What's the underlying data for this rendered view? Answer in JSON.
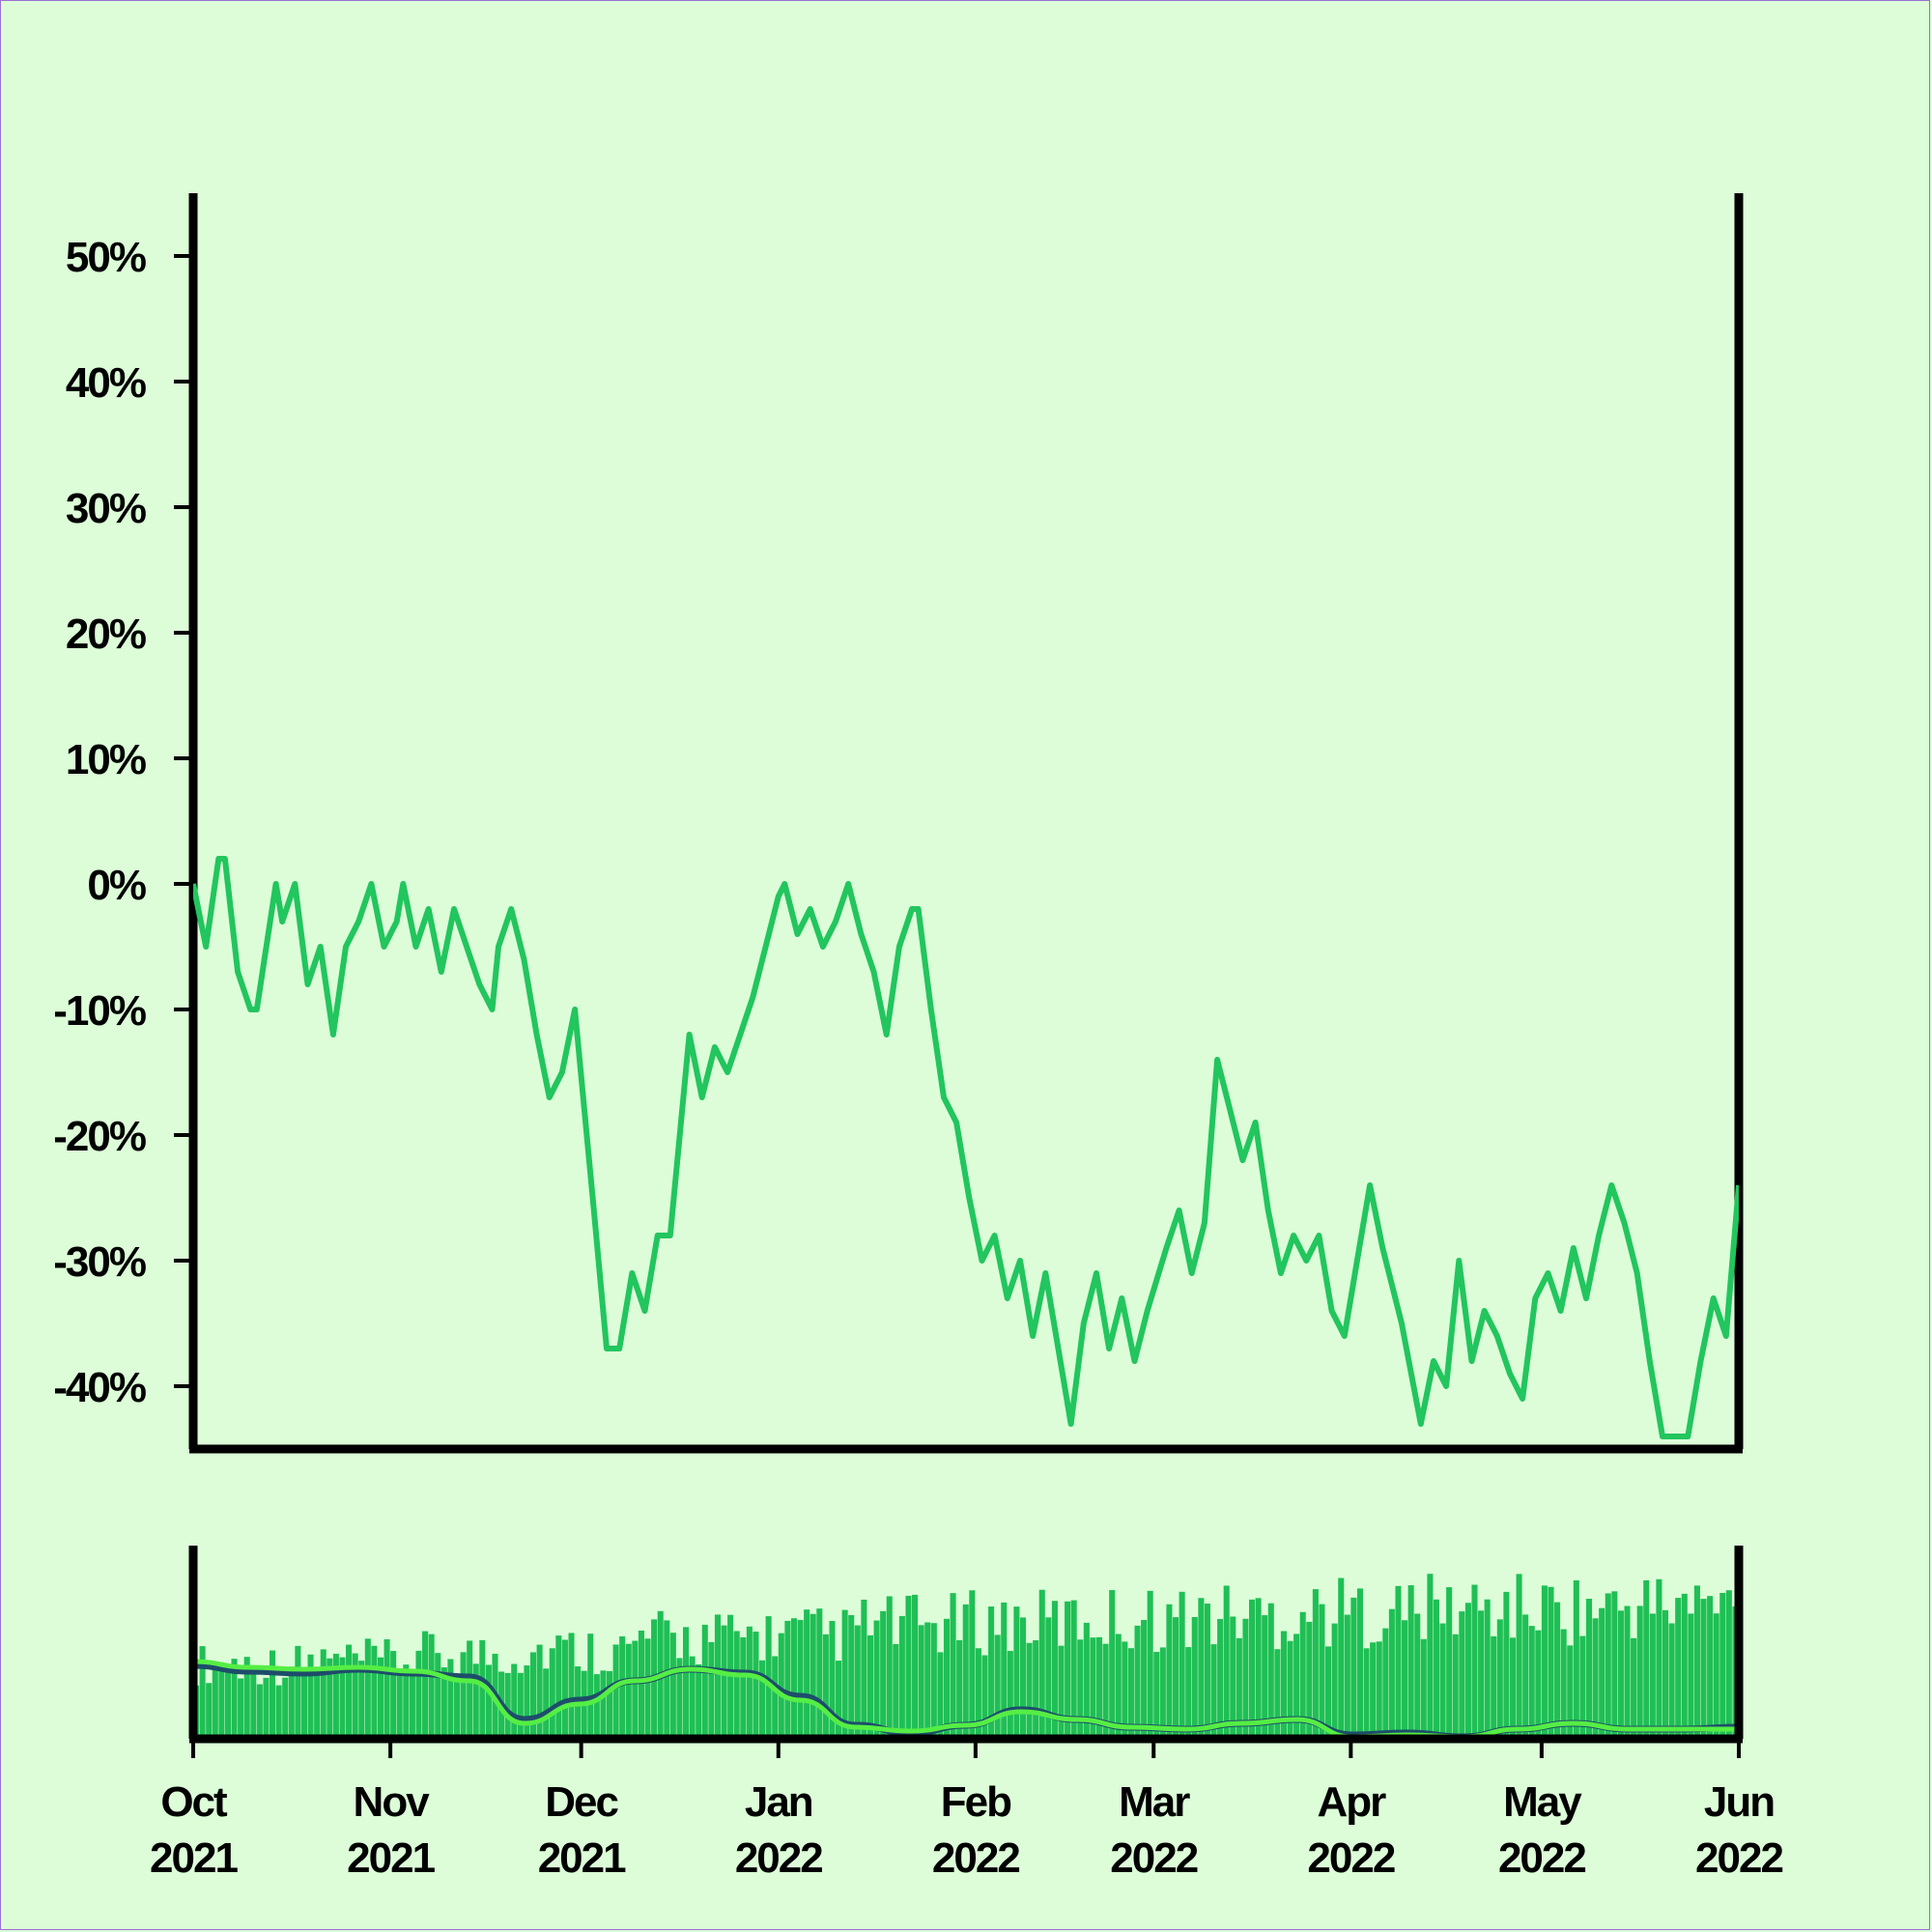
{
  "chart_data": [
    {
      "type": "line",
      "title": "",
      "xlabel": "",
      "ylabel": "",
      "ylim": [
        -45,
        55
      ],
      "xlim": [
        "2021-10-01",
        "2022-06-01"
      ],
      "grid": false,
      "y_ticks": [
        {
          "value": 50,
          "label": "50%"
        },
        {
          "value": 40,
          "label": "40%"
        },
        {
          "value": 30,
          "label": "30%"
        },
        {
          "value": 20,
          "label": "20%"
        },
        {
          "value": 10,
          "label": "10%"
        },
        {
          "value": 0,
          "label": "0%"
        },
        {
          "value": -10,
          "label": "-10%"
        },
        {
          "value": -20,
          "label": "-20%"
        },
        {
          "value": -30,
          "label": "-30%"
        },
        {
          "value": -40,
          "label": "-40%"
        }
      ],
      "series": [
        {
          "color": "#22c55e",
          "points": [
            [
              "2021-10-01",
              0
            ],
            [
              "2021-10-03",
              -5
            ],
            [
              "2021-10-05",
              2
            ],
            [
              "2021-10-06",
              2
            ],
            [
              "2021-10-08",
              -7
            ],
            [
              "2021-10-10",
              -10
            ],
            [
              "2021-10-11",
              -10
            ],
            [
              "2021-10-14",
              0
            ],
            [
              "2021-10-15",
              -3
            ],
            [
              "2021-10-17",
              0
            ],
            [
              "2021-10-19",
              -8
            ],
            [
              "2021-10-21",
              -5
            ],
            [
              "2021-10-23",
              -12
            ],
            [
              "2021-10-25",
              -5
            ],
            [
              "2021-10-27",
              -3
            ],
            [
              "2021-10-29",
              0
            ],
            [
              "2021-10-31",
              -5
            ],
            [
              "2021-11-02",
              -3
            ],
            [
              "2021-11-03",
              0
            ],
            [
              "2021-11-05",
              -5
            ],
            [
              "2021-11-07",
              -2
            ],
            [
              "2021-11-09",
              -7
            ],
            [
              "2021-11-11",
              -2
            ],
            [
              "2021-11-13",
              -5
            ],
            [
              "2021-11-15",
              -8
            ],
            [
              "2021-11-17",
              -10
            ],
            [
              "2021-11-18",
              -5
            ],
            [
              "2021-11-20",
              -2
            ],
            [
              "2021-11-22",
              -6
            ],
            [
              "2021-11-24",
              -12
            ],
            [
              "2021-11-26",
              -17
            ],
            [
              "2021-11-28",
              -15
            ],
            [
              "2021-11-30",
              -10
            ],
            [
              "2021-12-03",
              -26
            ],
            [
              "2021-12-05",
              -37
            ],
            [
              "2021-12-07",
              -37
            ],
            [
              "2021-12-09",
              -31
            ],
            [
              "2021-12-11",
              -34
            ],
            [
              "2021-12-13",
              -28
            ],
            [
              "2021-12-15",
              -28
            ],
            [
              "2021-12-18",
              -12
            ],
            [
              "2021-12-20",
              -17
            ],
            [
              "2021-12-22",
              -13
            ],
            [
              "2021-12-24",
              -15
            ],
            [
              "2021-12-26",
              -12
            ],
            [
              "2021-12-28",
              -9
            ],
            [
              "2021-12-30",
              -5
            ],
            [
              "2022-01-01",
              -1
            ],
            [
              "2022-01-02",
              0
            ],
            [
              "2022-01-04",
              -4
            ],
            [
              "2022-01-06",
              -2
            ],
            [
              "2022-01-08",
              -5
            ],
            [
              "2022-01-10",
              -3
            ],
            [
              "2022-01-12",
              0
            ],
            [
              "2022-01-14",
              -4
            ],
            [
              "2022-01-16",
              -7
            ],
            [
              "2022-01-18",
              -12
            ],
            [
              "2022-01-20",
              -5
            ],
            [
              "2022-01-22",
              -2
            ],
            [
              "2022-01-23",
              -2
            ],
            [
              "2022-01-25",
              -10
            ],
            [
              "2022-01-27",
              -17
            ],
            [
              "2022-01-29",
              -19
            ],
            [
              "2022-01-31",
              -25
            ],
            [
              "2022-02-02",
              -30
            ],
            [
              "2022-02-04",
              -28
            ],
            [
              "2022-02-06",
              -33
            ],
            [
              "2022-02-08",
              -30
            ],
            [
              "2022-02-10",
              -36
            ],
            [
              "2022-02-12",
              -31
            ],
            [
              "2022-02-15",
              -40
            ],
            [
              "2022-02-16",
              -43
            ],
            [
              "2022-02-18",
              -35
            ],
            [
              "2022-02-20",
              -31
            ],
            [
              "2022-02-22",
              -37
            ],
            [
              "2022-02-24",
              -33
            ],
            [
              "2022-02-26",
              -38
            ],
            [
              "2022-02-28",
              -34
            ],
            [
              "2022-03-03",
              -29
            ],
            [
              "2022-03-05",
              -26
            ],
            [
              "2022-03-07",
              -31
            ],
            [
              "2022-03-09",
              -27
            ],
            [
              "2022-03-11",
              -14
            ],
            [
              "2022-03-13",
              -18
            ],
            [
              "2022-03-15",
              -22
            ],
            [
              "2022-03-17",
              -19
            ],
            [
              "2022-03-19",
              -26
            ],
            [
              "2022-03-21",
              -31
            ],
            [
              "2022-03-23",
              -28
            ],
            [
              "2022-03-25",
              -30
            ],
            [
              "2022-03-27",
              -28
            ],
            [
              "2022-03-29",
              -34
            ],
            [
              "2022-03-31",
              -36
            ],
            [
              "2022-04-02",
              -30
            ],
            [
              "2022-04-04",
              -24
            ],
            [
              "2022-04-06",
              -29
            ],
            [
              "2022-04-09",
              -35
            ],
            [
              "2022-04-12",
              -43
            ],
            [
              "2022-04-14",
              -38
            ],
            [
              "2022-04-16",
              -40
            ],
            [
              "2022-04-18",
              -30
            ],
            [
              "2022-04-20",
              -38
            ],
            [
              "2022-04-22",
              -34
            ],
            [
              "2022-04-24",
              -36
            ],
            [
              "2022-04-26",
              -39
            ],
            [
              "2022-04-28",
              -41
            ],
            [
              "2022-04-30",
              -33
            ],
            [
              "2022-05-02",
              -31
            ],
            [
              "2022-05-04",
              -34
            ],
            [
              "2022-05-06",
              -29
            ],
            [
              "2022-05-08",
              -33
            ],
            [
              "2022-05-10",
              -28
            ],
            [
              "2022-05-12",
              -24
            ],
            [
              "2022-05-14",
              -27
            ],
            [
              "2022-05-16",
              -31
            ],
            [
              "2022-05-18",
              -38
            ],
            [
              "2022-05-20",
              -44
            ],
            [
              "2022-05-22",
              -44
            ],
            [
              "2022-05-24",
              -44
            ],
            [
              "2022-05-26",
              -38
            ],
            [
              "2022-05-28",
              -33
            ],
            [
              "2022-05-30",
              -36
            ],
            [
              "2022-06-01",
              -24
            ]
          ]
        }
      ]
    },
    {
      "type": "bar",
      "title": "",
      "xlabel": "",
      "ylabel": "",
      "grid": false,
      "x_ticks": [
        {
          "value": "2021-10-01",
          "label": [
            "Oct",
            "2021"
          ]
        },
        {
          "value": "2021-11-01",
          "label": [
            "Nov",
            "2021"
          ]
        },
        {
          "value": "2021-12-01",
          "label": [
            "Dec",
            "2021"
          ]
        },
        {
          "value": "2022-01-01",
          "label": [
            "Jan",
            "2022"
          ]
        },
        {
          "value": "2022-02-01",
          "label": [
            "Feb",
            "2022"
          ]
        },
        {
          "value": "2022-03-01",
          "label": [
            "Mar",
            "2022"
          ]
        },
        {
          "value": "2022-04-01",
          "label": [
            "Apr",
            "2022"
          ]
        },
        {
          "value": "2022-05-01",
          "label": [
            "May",
            "2022"
          ]
        },
        {
          "value": "2022-06-01",
          "label": [
            "Jun",
            "2022"
          ]
        }
      ],
      "bar_color": "#1fbf55",
      "bar_count": 243,
      "bar_levels": [
        0.46,
        0.48,
        0.52,
        0.55,
        0.62,
        0.64,
        0.7,
        0.72,
        0.74,
        0.76,
        0.78,
        0.8,
        0.8,
        0.82
      ],
      "smoothed_series": [
        {
          "color": "#1e4d6b",
          "values": [
            0.38,
            0.35,
            0.34,
            0.36,
            0.34,
            0.32,
            0.1,
            0.2,
            0.3,
            0.36,
            0.34,
            0.22,
            0.07,
            0.03,
            0.07,
            0.15,
            0.1,
            0.06,
            0.05,
            0.08,
            0.1,
            0.02,
            0.03,
            0.01,
            0.05,
            0.08,
            0.05,
            0.05,
            0.06
          ]
        },
        {
          "color": "#55ee44",
          "values": [
            0.4,
            0.37,
            0.36,
            0.37,
            0.35,
            0.3,
            0.08,
            0.18,
            0.3,
            0.36,
            0.33,
            0.2,
            0.06,
            0.04,
            0.07,
            0.14,
            0.1,
            0.06,
            0.05,
            0.08,
            0.1,
            0.01,
            0.02,
            0.01,
            0.05,
            0.08,
            0.05,
            0.05,
            0.05
          ]
        }
      ]
    }
  ]
}
